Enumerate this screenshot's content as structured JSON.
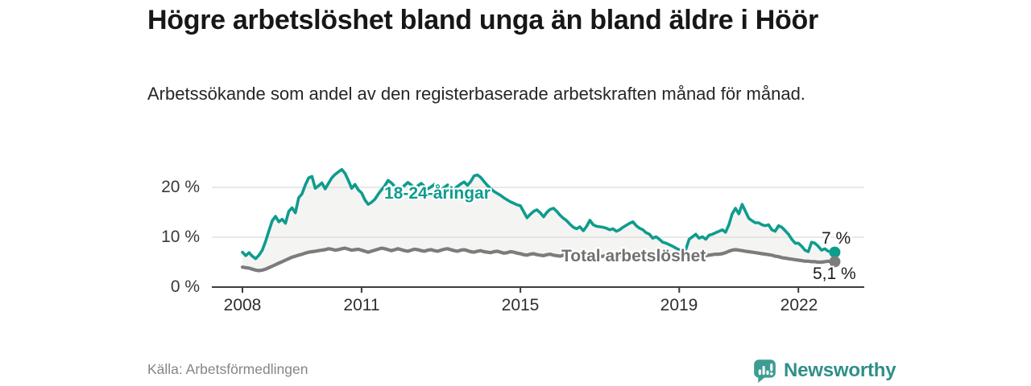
{
  "chart_data": {
    "type": "line",
    "title": "Högre arbetslöshet bland unga än bland äldre i Höör",
    "subtitle": "Arbetssökande som andel av den registerbaserade arbetskraften månad för månad.",
    "x_unit": "month",
    "x_start": "2008-01",
    "x_end": "2022-12",
    "x_tick_years": [
      2008,
      2011,
      2015,
      2019,
      2022
    ],
    "x_tick_labels": [
      "2008",
      "2011",
      "2015",
      "2019",
      "2022"
    ],
    "y_ticks_pct": [
      20,
      10,
      0
    ],
    "y_tick_labels": [
      "20 %",
      "10 %",
      "0 %"
    ],
    "ylim": [
      0,
      24
    ],
    "grid": "horizontal-only",
    "legend": "inline-labels",
    "area_fill_color": "#f4f4f3",
    "series": [
      {
        "name": "18-24-åringar",
        "color": "#0e9c8e",
        "end_label": "7 %",
        "last_value": 7.0,
        "values": [
          7.0,
          6.3,
          6.9,
          6.2,
          5.7,
          6.4,
          7.4,
          9.2,
          11.3,
          13.3,
          14.2,
          13.1,
          13.6,
          12.8,
          15.2,
          15.9,
          14.9,
          17.9,
          18.7,
          20.5,
          21.9,
          22.2,
          19.8,
          20.3,
          20.9,
          19.7,
          20.8,
          21.9,
          22.6,
          23.1,
          23.6,
          22.8,
          21.4,
          19.8,
          20.6,
          19.5,
          18.9,
          17.5,
          16.6,
          17.0,
          17.6,
          18.6,
          19.5,
          20.3,
          21.4,
          20.9,
          20.2,
          19.6,
          19.8,
          20.4,
          21.0,
          20.5,
          19.9,
          20.3,
          20.8,
          20.2,
          19.7,
          20.1,
          20.6,
          20.0,
          19.6,
          20.0,
          20.5,
          20.1,
          19.7,
          20.2,
          20.7,
          21.1,
          20.4,
          21.2,
          22.3,
          22.5,
          22.0,
          21.2,
          20.4,
          19.8,
          19.2,
          18.8,
          18.4,
          17.9,
          17.5,
          17.1,
          16.8,
          16.5,
          16.3,
          15.1,
          13.9,
          14.6,
          15.2,
          15.5,
          14.9,
          14.1,
          15.0,
          15.6,
          15.8,
          15.2,
          14.4,
          13.8,
          13.3,
          12.6,
          12.0,
          11.7,
          12.1,
          11.3,
          12.2,
          13.4,
          12.5,
          12.2,
          12.1,
          12.0,
          11.8,
          11.5,
          11.7,
          11.2,
          11.5,
          12.0,
          12.4,
          12.8,
          13.1,
          12.3,
          11.8,
          11.5,
          10.9,
          10.6,
          9.8,
          10.1,
          9.6,
          9.0,
          8.8,
          8.5,
          8.2,
          7.8,
          7.5,
          7.4,
          7.6,
          9.6,
          10.1,
          10.6,
          9.8,
          10.1,
          9.6,
          10.4,
          10.6,
          10.9,
          11.2,
          11.5,
          11.0,
          12.5,
          14.7,
          15.8,
          14.7,
          16.6,
          15.2,
          13.8,
          13.3,
          12.9,
          12.9,
          12.5,
          12.3,
          12.5,
          11.5,
          11.2,
          12.3,
          12.0,
          11.3,
          10.6,
          9.6,
          8.8,
          8.8,
          8.2,
          7.4,
          7.1,
          9.0,
          8.8,
          8.2,
          7.4,
          7.7,
          7.2,
          7.1,
          7.0
        ]
      },
      {
        "name": "Total arbetslöshet",
        "color": "#7c7c7c",
        "end_label": "5,1 %",
        "last_value": 5.1,
        "values": [
          4.0,
          3.9,
          3.8,
          3.6,
          3.4,
          3.3,
          3.4,
          3.6,
          3.9,
          4.2,
          4.5,
          4.8,
          5.1,
          5.4,
          5.7,
          6.0,
          6.2,
          6.4,
          6.6,
          6.8,
          7.0,
          7.1,
          7.2,
          7.3,
          7.4,
          7.5,
          7.7,
          7.6,
          7.4,
          7.5,
          7.7,
          7.8,
          7.6,
          7.4,
          7.5,
          7.6,
          7.4,
          7.2,
          7.0,
          7.2,
          7.4,
          7.6,
          7.8,
          7.7,
          7.5,
          7.3,
          7.5,
          7.7,
          7.5,
          7.3,
          7.2,
          7.4,
          7.6,
          7.5,
          7.3,
          7.2,
          7.4,
          7.5,
          7.3,
          7.2,
          7.4,
          7.6,
          7.7,
          7.5,
          7.3,
          7.2,
          7.4,
          7.5,
          7.3,
          7.1,
          7.0,
          7.2,
          7.3,
          7.1,
          7.0,
          6.9,
          7.1,
          7.2,
          7.0,
          6.8,
          6.9,
          7.1,
          7.0,
          6.8,
          6.7,
          6.5,
          6.4,
          6.6,
          6.7,
          6.5,
          6.4,
          6.3,
          6.5,
          6.6,
          6.4,
          6.3,
          6.2,
          6.4,
          6.5,
          6.3,
          6.2,
          6.4,
          6.5,
          6.3,
          6.2,
          6.3,
          6.4,
          6.2,
          6.1,
          6.2,
          6.3,
          6.2,
          6.1,
          6.2,
          6.3,
          6.2,
          6.1,
          6.2,
          6.3,
          6.2,
          6.1,
          6.0,
          5.9,
          6.0,
          6.1,
          6.0,
          5.9,
          5.8,
          5.9,
          6.0,
          5.9,
          5.8,
          5.9,
          5.8,
          5.9,
          6.0,
          6.1,
          6.2,
          6.3,
          6.2,
          6.3,
          6.4,
          6.5,
          6.6,
          6.6,
          6.7,
          6.9,
          7.2,
          7.4,
          7.5,
          7.4,
          7.3,
          7.2,
          7.1,
          7.0,
          6.9,
          6.8,
          6.7,
          6.6,
          6.5,
          6.4,
          6.2,
          6.1,
          5.9,
          5.8,
          5.7,
          5.6,
          5.5,
          5.4,
          5.3,
          5.2,
          5.2,
          5.1,
          5.1,
          5.0,
          5.0,
          5.1,
          5.2,
          5.1,
          5.1
        ]
      }
    ]
  },
  "footer": {
    "source": "Källa: Arbetsförmedlingen",
    "brand": "Newsworthy"
  },
  "colors": {
    "accent_teal": "#0e9c8e",
    "line_gray": "#7c7c7c",
    "brand_teal": "#2f8f89",
    "brand_icon_teal": "#3e9c92",
    "gridline": "#d9d9d9",
    "axis": "#3d3d3d"
  }
}
